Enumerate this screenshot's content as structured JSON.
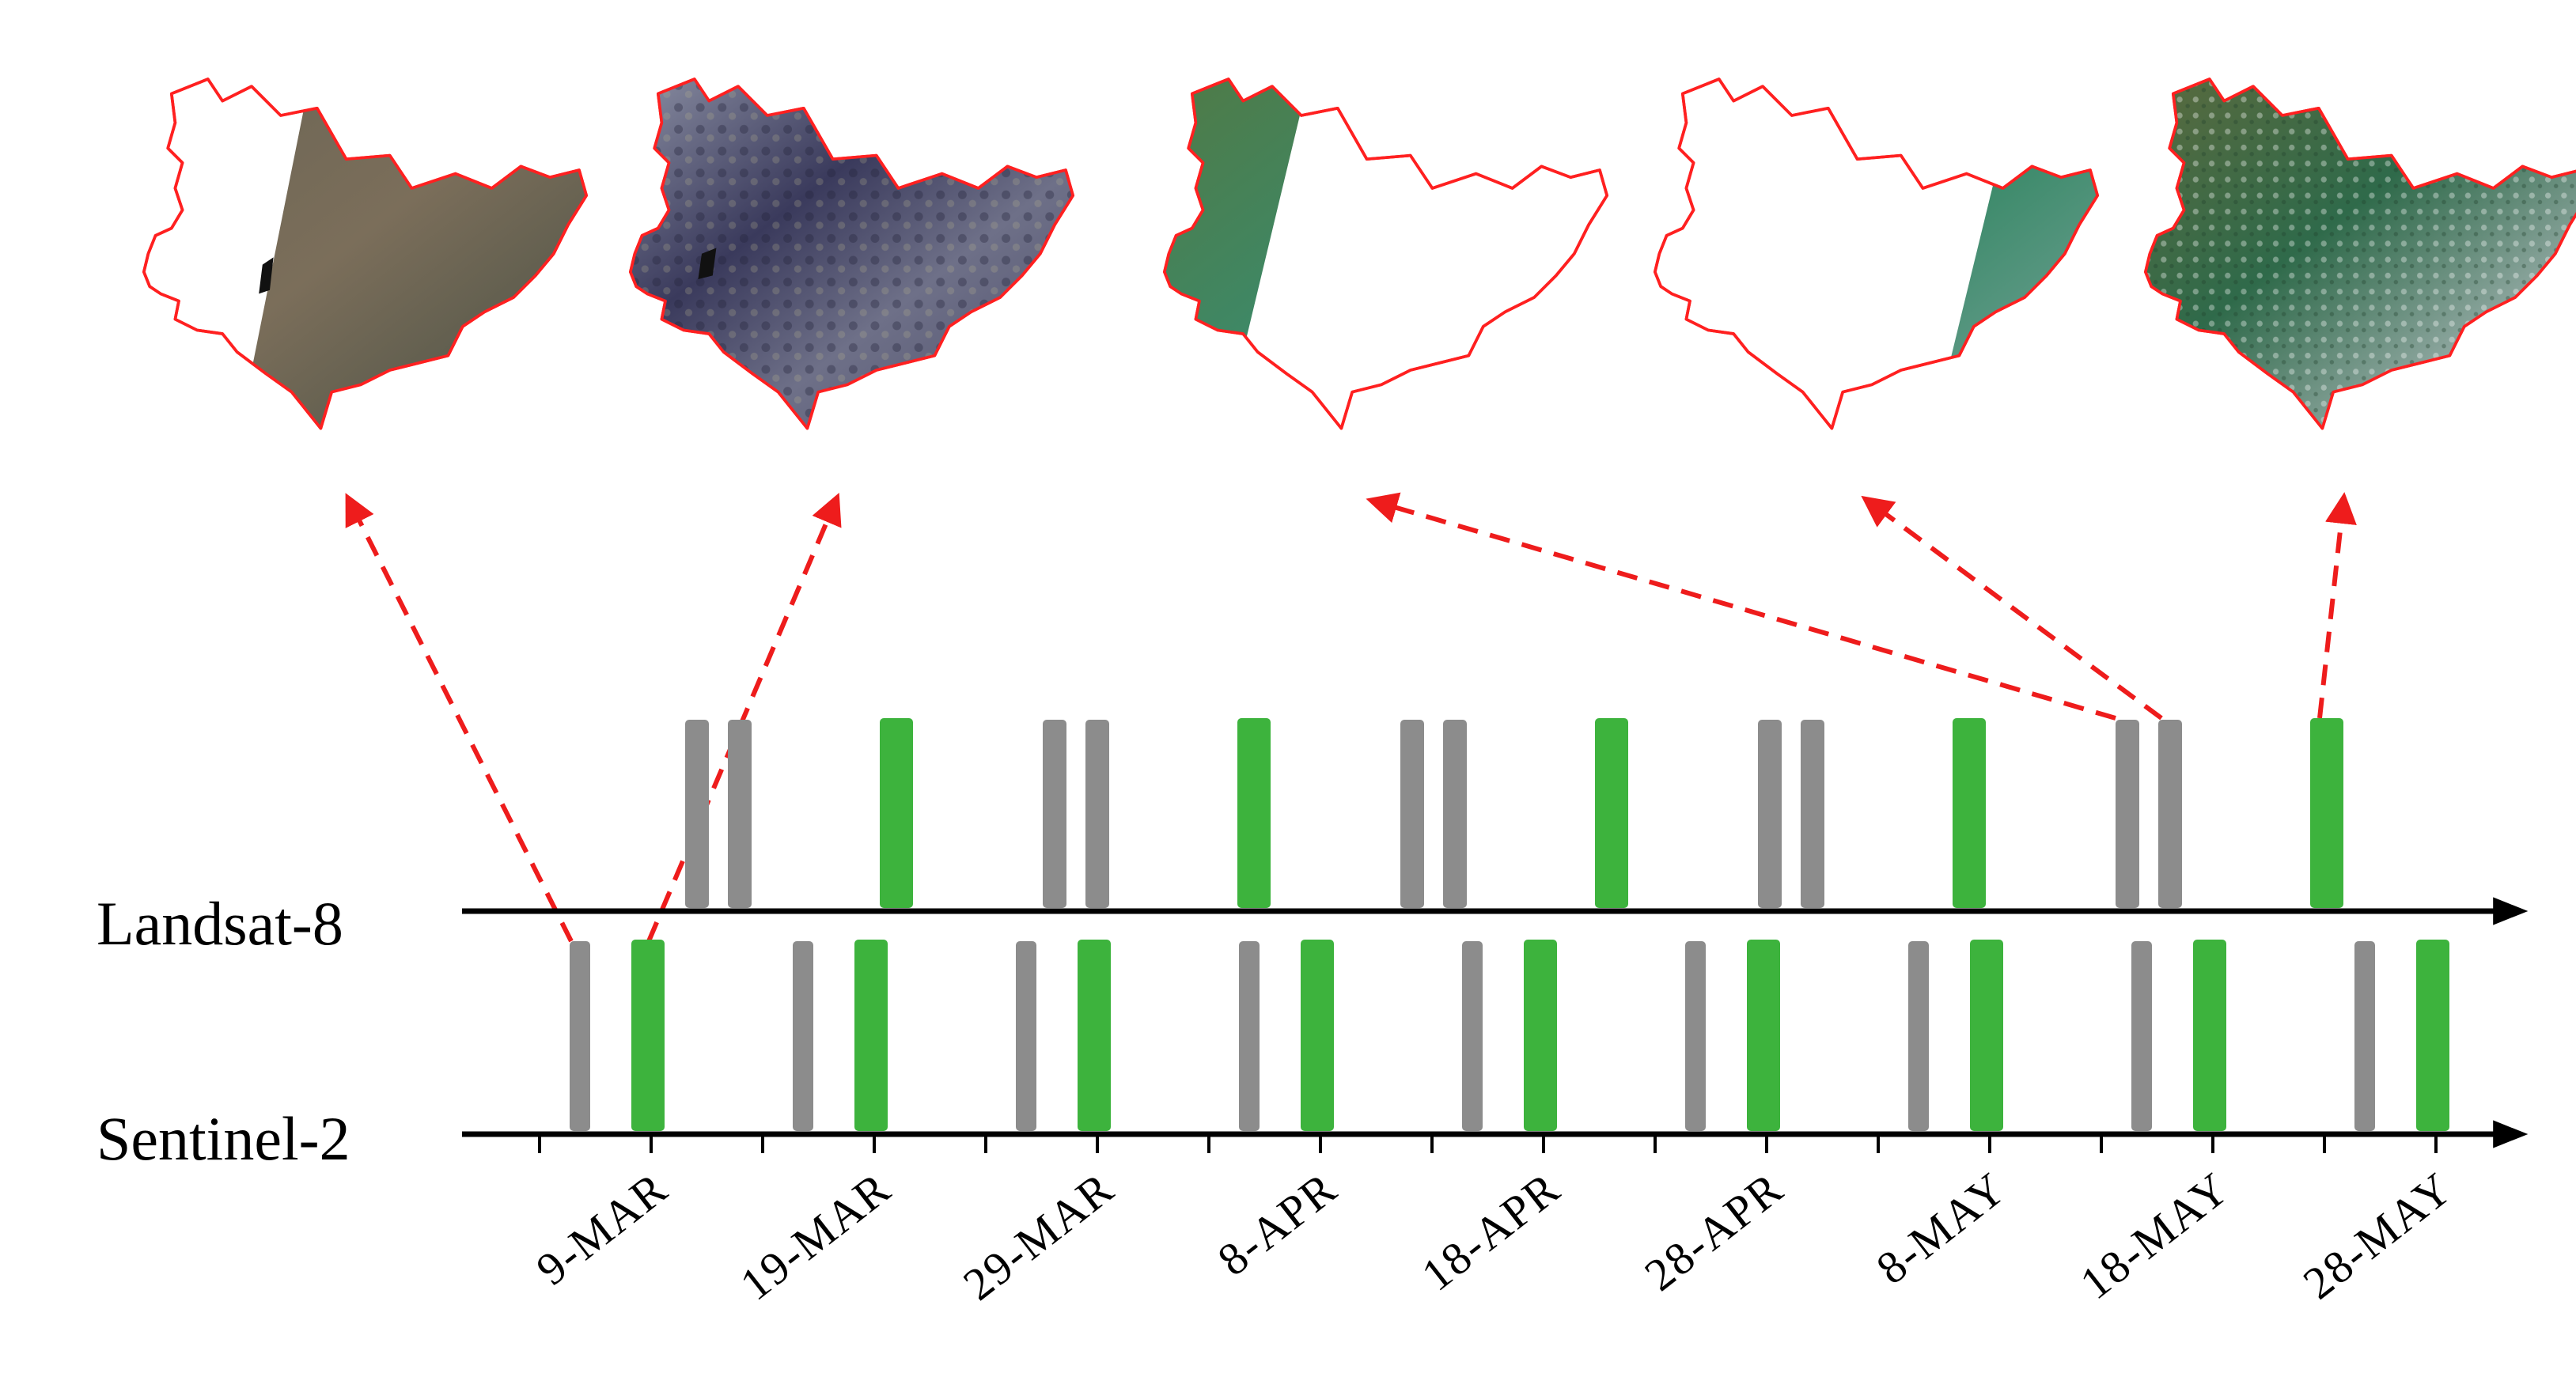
{
  "sensors": [
    {
      "name": "Landsat-8"
    },
    {
      "name": "Sentinel-2"
    }
  ],
  "dates": [
    "9-MAR",
    "19-MAR",
    "29-MAR",
    "8-APR",
    "18-APR",
    "28-APR",
    "8-MAY",
    "18-MAY",
    "28-MAY"
  ],
  "colors": {
    "acquisition_a": "#8c8c8c",
    "acquisition_b": "#3db33d",
    "arrow": "#ee1c1c",
    "region_outline": "#ff2020"
  },
  "thumbnails": [
    {
      "name": "thumbnail-1",
      "coverage": "partial-right",
      "tone": "brown"
    },
    {
      "name": "thumbnail-2",
      "coverage": "full",
      "tone": "dark-mixed"
    },
    {
      "name": "thumbnail-3",
      "coverage": "partial-left",
      "tone": "green"
    },
    {
      "name": "thumbnail-4",
      "coverage": "partial-right-edge",
      "tone": "green"
    },
    {
      "name": "thumbnail-5",
      "coverage": "full",
      "tone": "green-cloudy"
    }
  ]
}
